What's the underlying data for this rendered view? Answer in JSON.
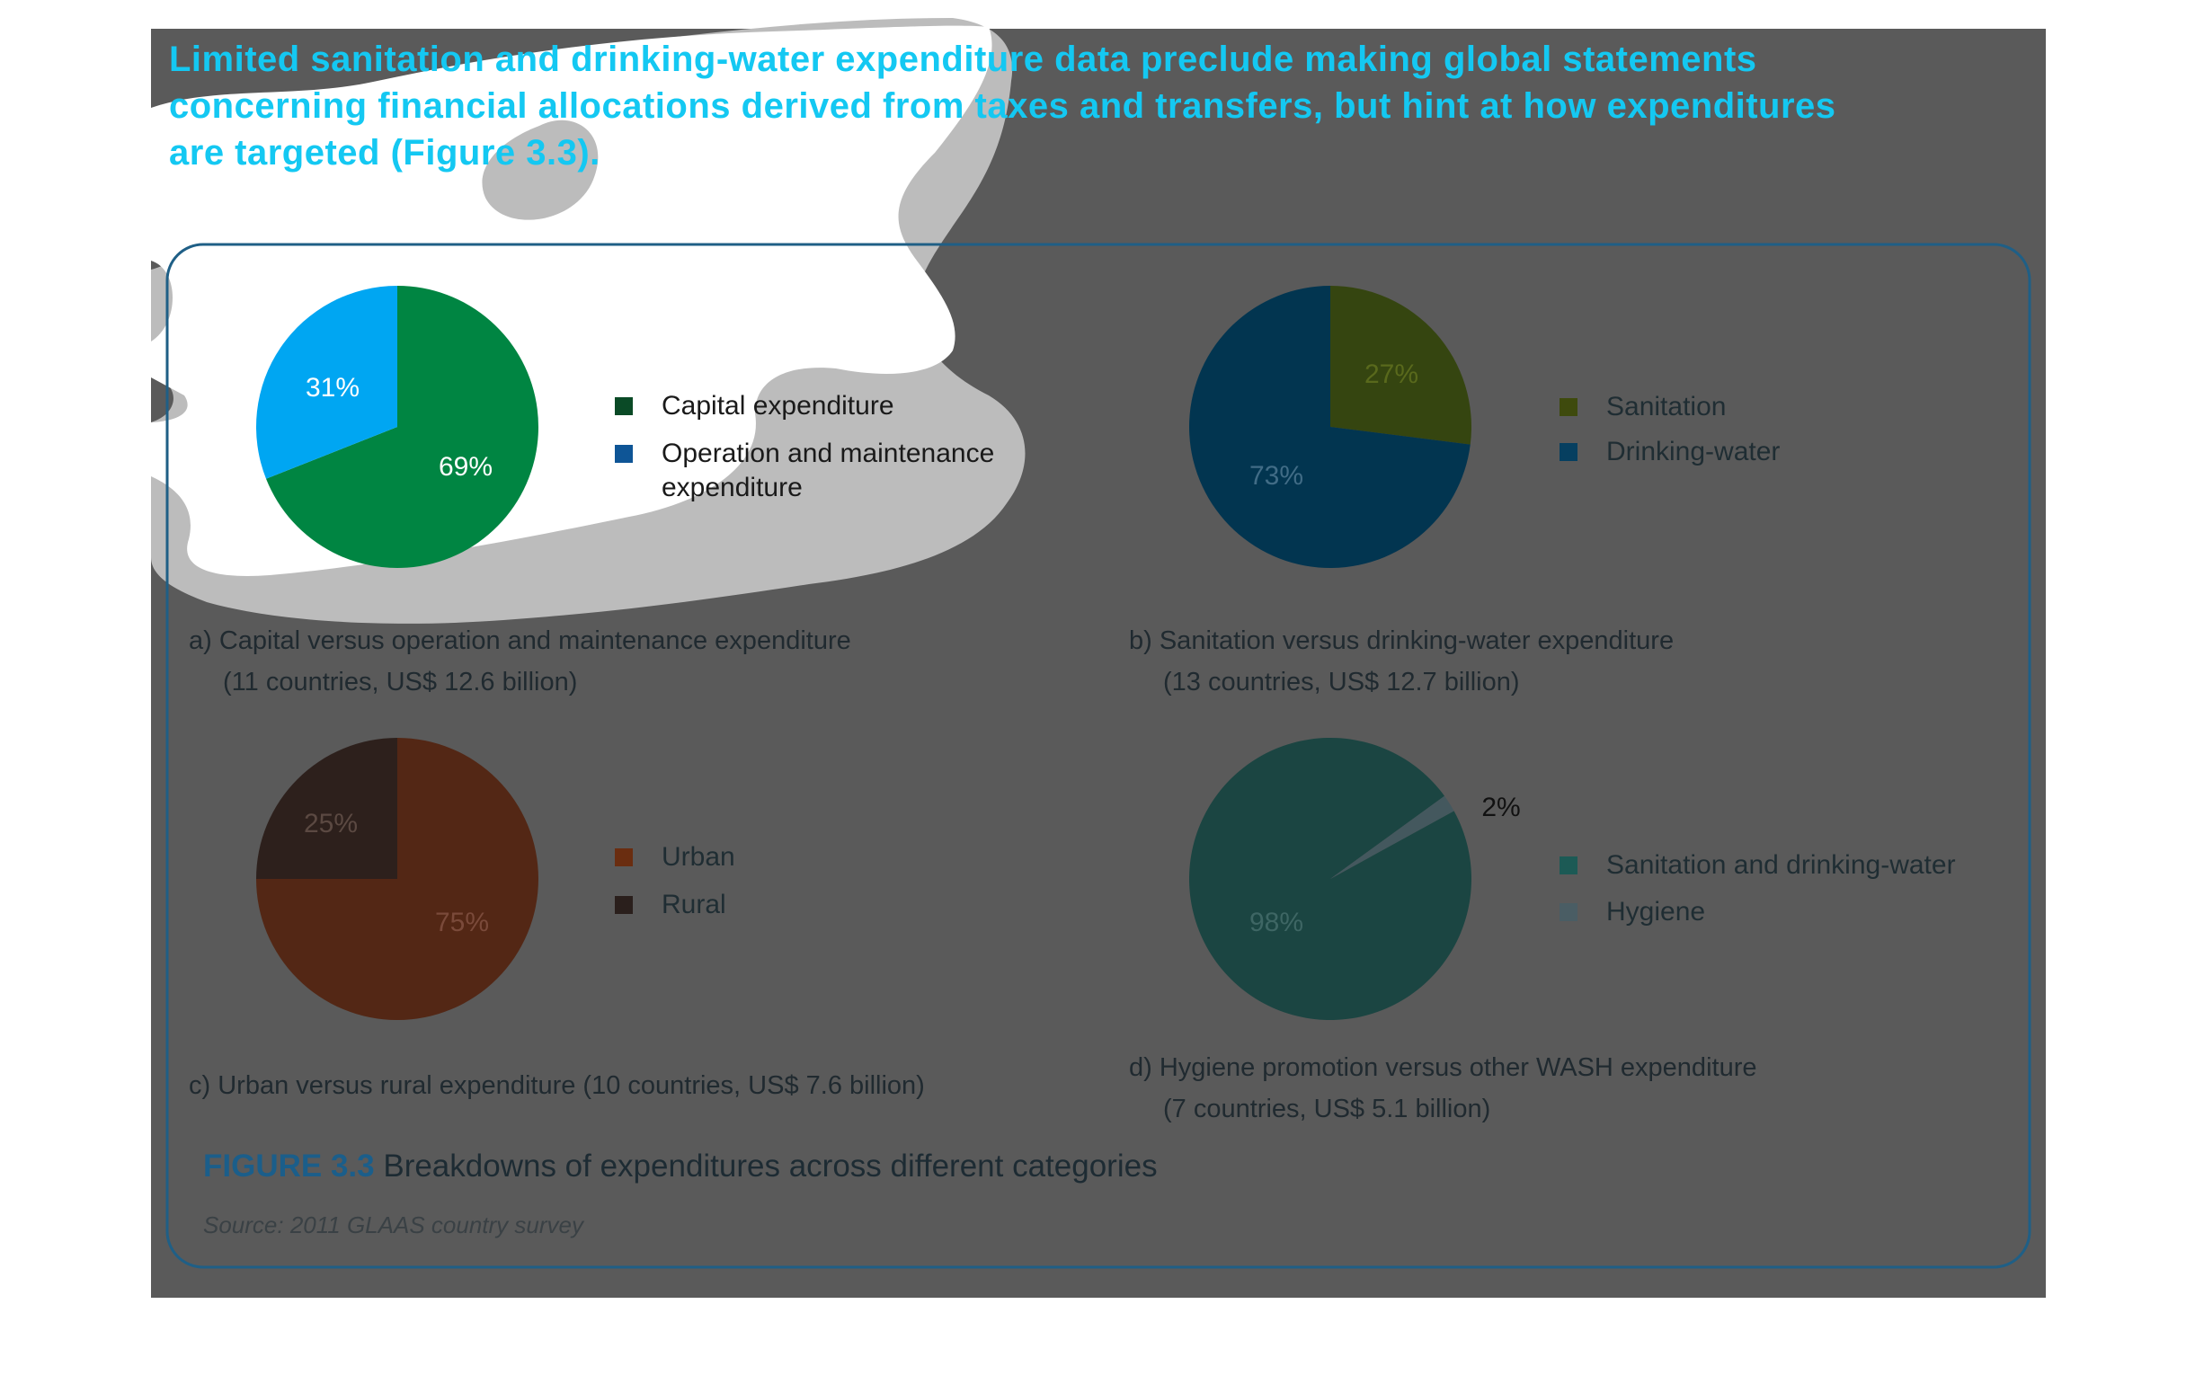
{
  "headline": {
    "line1": "Limited sanitation and drinking-water expenditure data preclude making global statements",
    "line2": "concerning financial allocations derived from taxes and transfers, but hint at how expenditures",
    "line3": "are targeted (Figure 3.3)."
  },
  "figure": {
    "number": "FIGURE 3.3",
    "title": "Breakdowns of expenditures across different categories",
    "source": "Source: 2011 GLAAS country survey"
  },
  "colors": {
    "overlay": "#5a5a5a",
    "frame": "#1f5f86",
    "headline": "#14c8f2"
  },
  "chart_data": [
    {
      "type": "pie",
      "caption_line1": "a) Capital versus operation and maintenance expenditure",
      "caption_line2": "(11 countries, US$ 12.6 billion)",
      "slices": [
        {
          "label": "Capital expenditure",
          "value": 69,
          "pct_label": "69%",
          "color": "#008542"
        },
        {
          "label": "Operation and maintenance expenditure",
          "value": 31,
          "pct_label": "31%",
          "color": "#00a6f2"
        }
      ],
      "legend": [
        {
          "label": "Capital expenditure",
          "color": "#0a4a26"
        },
        {
          "label": "Operation and maintenance",
          "label2": "expenditure",
          "color": "#0e5596"
        }
      ]
    },
    {
      "type": "pie",
      "caption_line1": "b) Sanitation versus drinking-water expenditure",
      "caption_line2": "(13 countries, US$ 12.7 billion)",
      "slices": [
        {
          "label": "Sanitation",
          "value": 27,
          "pct_label": "27%",
          "color": "#354510"
        },
        {
          "label": "Drinking-water",
          "value": 73,
          "pct_label": "73%",
          "color": "#023550"
        }
      ],
      "legend": [
        {
          "label": "Sanitation",
          "color": "#3e4a0d"
        },
        {
          "label": "Drinking-water",
          "color": "#063f60"
        }
      ]
    },
    {
      "type": "pie",
      "caption_line1": "c) Urban versus rural expenditure (10 countries, US$ 7.6 billion)",
      "caption_line2": "",
      "slices": [
        {
          "label": "Urban",
          "value": 75,
          "pct_label": "75%",
          "color": "#532715"
        },
        {
          "label": "Rural",
          "value": 25,
          "pct_label": "25%",
          "color": "#2d201c"
        }
      ],
      "legend": [
        {
          "label": "Urban",
          "color": "#6a2d10"
        },
        {
          "label": "Rural",
          "color": "#2a1f1c"
        }
      ]
    },
    {
      "type": "pie",
      "caption_line1": "d) Hygiene promotion versus other WASH expenditure",
      "caption_line2": "(7 countries, US$ 5.1 billion)",
      "slices": [
        {
          "label": "Sanitation and drinking-water",
          "value": 98,
          "pct_label": "98%",
          "color": "#1b4542"
        },
        {
          "label": "Hygiene",
          "value": 2,
          "pct_label": "2%",
          "color": "#44585e"
        }
      ],
      "legend": [
        {
          "label": "Sanitation and drinking-water",
          "color": "#1c5a55"
        },
        {
          "label": "Hygiene",
          "color": "#4a5d64"
        }
      ]
    }
  ]
}
